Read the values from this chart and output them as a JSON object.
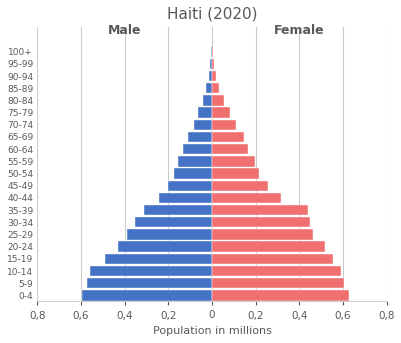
{
  "title": "Haiti (2020)",
  "age_groups": [
    "0-4",
    "5-9",
    "10-14",
    "15-19",
    "20-24",
    "25-29",
    "30-34",
    "35-39",
    "40-44",
    "45-49",
    "50-54",
    "55-59",
    "60-64",
    "65-69",
    "70-74",
    "75-79",
    "80-84",
    "85-89",
    "90-94",
    "95-99",
    "100+"
  ],
  "male": [
    0.595,
    0.575,
    0.56,
    0.49,
    0.43,
    0.39,
    0.355,
    0.31,
    0.245,
    0.2,
    0.175,
    0.155,
    0.135,
    0.11,
    0.085,
    0.063,
    0.042,
    0.026,
    0.016,
    0.009,
    0.004
  ],
  "female": [
    0.625,
    0.605,
    0.59,
    0.555,
    0.515,
    0.46,
    0.45,
    0.44,
    0.315,
    0.255,
    0.215,
    0.195,
    0.165,
    0.145,
    0.108,
    0.08,
    0.055,
    0.033,
    0.02,
    0.011,
    0.005
  ],
  "male_color": "#4472C4",
  "female_color": "#F07070",
  "xlim": 0.8,
  "xlabel": "Population in millions",
  "male_label": "Male",
  "female_label": "Female",
  "background_color": "#FFFFFF",
  "grid_color": "#CCCCCC",
  "title_color": "#595959",
  "label_color": "#595959",
  "xtick_vals": [
    -0.8,
    -0.6,
    -0.4,
    -0.2,
    0.0,
    0.2,
    0.4,
    0.6,
    0.8
  ]
}
